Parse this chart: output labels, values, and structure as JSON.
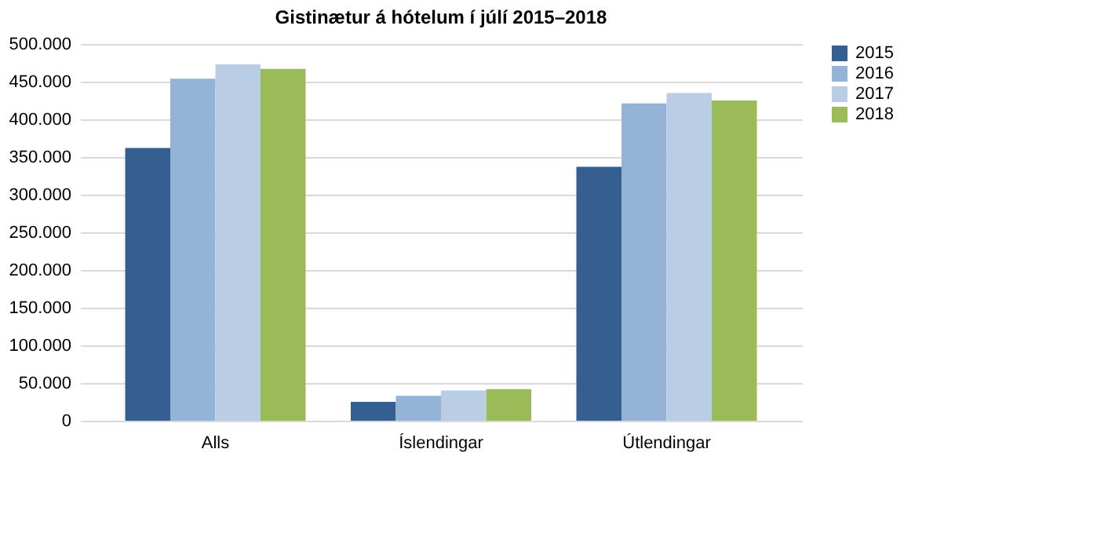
{
  "chart_data": {
    "type": "bar",
    "title": "Gistinætur á hótelum í júlí 2015–2018",
    "categories": [
      "Alls",
      "Íslendingar",
      "Útlendingar"
    ],
    "series": [
      {
        "name": "2015",
        "color": "#355f91",
        "values": [
          362000,
          25000,
          337000
        ]
      },
      {
        "name": "2016",
        "color": "#95b3d7",
        "values": [
          454000,
          33000,
          421000
        ]
      },
      {
        "name": "2017",
        "color": "#b9cde5",
        "values": [
          473000,
          40000,
          435000
        ]
      },
      {
        "name": "2018",
        "color": "#9bbb59",
        "values": [
          467000,
          42000,
          425000
        ]
      }
    ],
    "ylim": [
      0,
      500000
    ],
    "yticks": [
      0,
      {
        "value": 50000,
        "label": "50.000"
      },
      {
        "value": 100000,
        "label": "100.000"
      },
      {
        "value": 150000,
        "label": "150.000"
      },
      {
        "value": 200000,
        "label": "200.000"
      },
      {
        "value": 250000,
        "label": "250.000"
      },
      {
        "value": 300000,
        "label": "300.000"
      },
      {
        "value": 350000,
        "label": "350.000"
      },
      {
        "value": 400000,
        "label": "400.000"
      },
      {
        "value": 450000,
        "label": "450.000"
      },
      {
        "value": 500000,
        "label": "500.000"
      }
    ],
    "grid": "y",
    "legend": "right"
  }
}
